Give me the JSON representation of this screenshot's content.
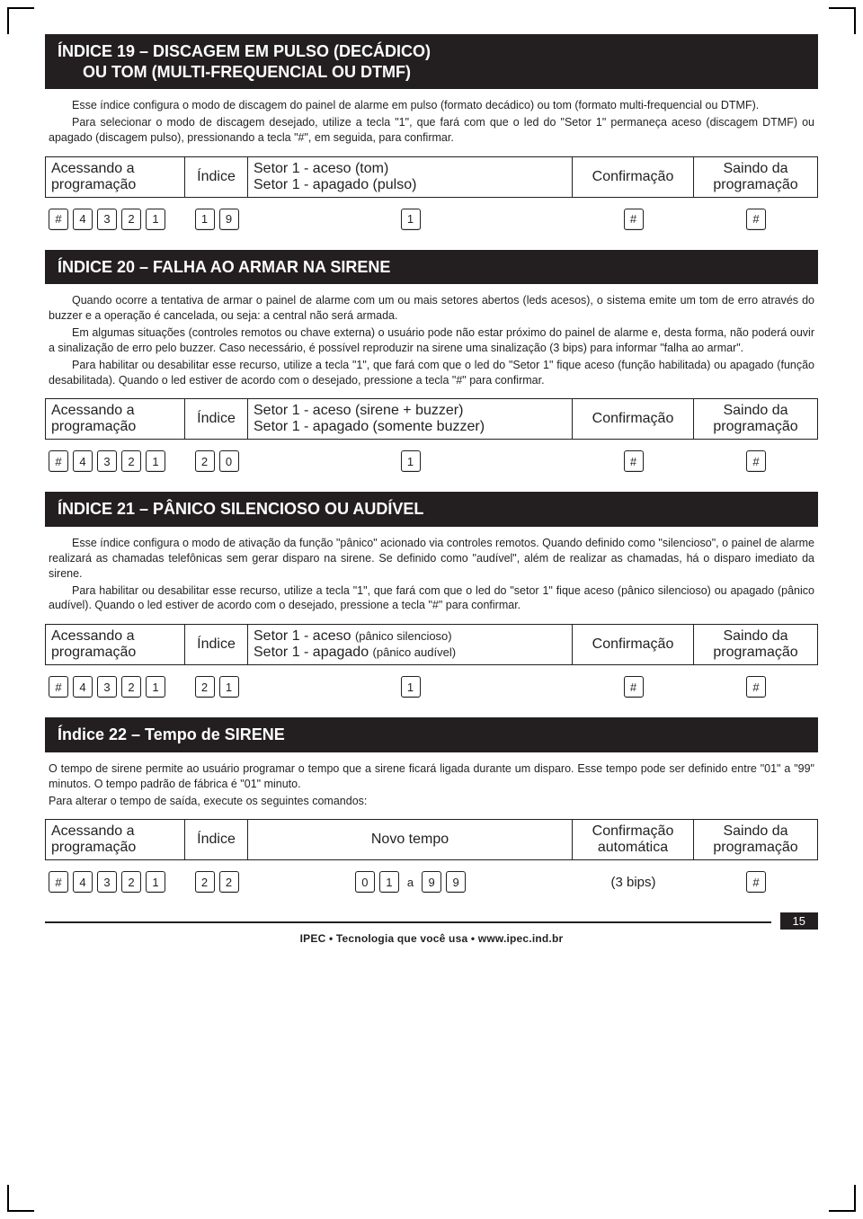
{
  "page_number": "15",
  "footer_tagline": "IPEC • Tecnologia que você usa • www.ipec.ind.br",
  "labels": {
    "access": "Acessando a programação",
    "access_l1": "Acessando  a",
    "access_l2": "programação",
    "index": "Índice",
    "confirm": "Confirmação",
    "confirm_auto_l1": "Confirmação",
    "confirm_auto_l2": "automática",
    "exit_l1": "Saindo da",
    "exit_l2": "programação",
    "novo_tempo": "Novo tempo",
    "bips3": "(3 bips)",
    "range_sep": "a"
  },
  "access_keys": [
    "#",
    "4",
    "3",
    "2",
    "1"
  ],
  "sections": [
    {
      "title_l1": "ÍNDICE 19 – DISCAGEM EM PULSO (DECÁDICO)",
      "title_l2": "OU TOM (MULTI-FREQUENCIAL OU DTMF)",
      "paragraphs": [
        "Esse índice configura o modo de discagem do painel de alarme em pulso (formato decádico) ou tom (formato multi-frequencial ou DTMF).",
        "Para selecionar o modo de discagem desejado, utilize a tecla \"1\", que fará com que o led do \"Setor 1\" permaneça aceso (discagem DTMF) ou apagado (discagem pulso), pressionando a tecla \"#\", em seguida, para confirmar."
      ],
      "setor_l1": "Setor 1 - aceso (tom)",
      "setor_l2": "Setor 1 - apagado (pulso)",
      "index_keys": [
        "1",
        "9"
      ],
      "setor_keys": [
        "1"
      ],
      "confirm_keys": [
        "#"
      ],
      "exit_keys": [
        "#"
      ]
    },
    {
      "title_l1": "ÍNDICE 20 – FALHA AO ARMAR NA SIRENE",
      "title_l2": "",
      "paragraphs": [
        "Quando ocorre a tentativa de armar o painel de alarme com um ou mais setores abertos (leds acesos), o sistema emite um tom de erro através do buzzer e a operação é cancelada, ou seja: a central não será armada.",
        "Em algumas situações (controles remotos ou chave externa) o usuário pode não estar próximo do painel de alarme e, desta forma, não poderá ouvir a sinalização de erro pelo buzzer. Caso necessário, é possível reproduzir na sirene uma sinalização (3 bips) para informar \"falha ao armar\".",
        "Para habilitar ou desabilitar esse recurso, utilize a tecla \"1\", que fará com que o led do \"Setor 1\" fique aceso (função habilitada) ou apagado (função desabilitada). Quando o led estiver de acordo com o desejado, pressione a tecla \"#\" para confirmar."
      ],
      "setor_l1": "Setor 1 - aceso (sirene + buzzer)",
      "setor_l2": "Setor 1 - apagado (somente buzzer)",
      "index_keys": [
        "2",
        "0"
      ],
      "setor_keys": [
        "1"
      ],
      "confirm_keys": [
        "#"
      ],
      "exit_keys": [
        "#"
      ]
    },
    {
      "title_l1": "ÍNDICE 21 – PÂNICO SILENCIOSO OU AUDÍVEL",
      "title_l2": "",
      "paragraphs": [
        "Esse índice configura o modo de ativação da função \"pânico\" acionado via controles remotos. Quando definido como \"silencioso\", o painel de alarme realizará as chamadas telefônicas sem gerar disparo na sirene. Se definido como \"audível\", além de realizar as chamadas, há o disparo imediato da sirene.",
        "Para habilitar ou desabilitar esse recurso, utilize a tecla \"1\", que fará com que o led do \"setor 1\" fique aceso (pânico silencioso) ou apagado (pânico audível). Quando o led estiver de acordo com o desejado, pressione a tecla \"#\" para confirmar."
      ],
      "setor_l1_a": "Setor 1 - aceso ",
      "setor_l1_b": "(pânico silencioso)",
      "setor_l2_a": "Setor 1 - apagado ",
      "setor_l2_b": "(pânico audível)",
      "index_keys": [
        "2",
        "1"
      ],
      "setor_keys": [
        "1"
      ],
      "confirm_keys": [
        "#"
      ],
      "exit_keys": [
        "#"
      ]
    },
    {
      "title_l1": "Índice 22 – Tempo de SIRENE",
      "title_l2": "",
      "paragraphs_noindent": [
        "O tempo de sirene permite ao usuário programar o tempo que a sirene ficará ligada durante um disparo. Esse tempo pode ser definido entre \"01\" a \"99\" minutos. O tempo padrão de fábrica é \"01\" minuto.",
        "Para alterar o tempo de saída, execute os seguintes comandos:"
      ],
      "index_keys": [
        "2",
        "2"
      ],
      "range_from": [
        "0",
        "1"
      ],
      "range_to": [
        "9",
        "9"
      ],
      "exit_keys": [
        "#"
      ]
    }
  ]
}
